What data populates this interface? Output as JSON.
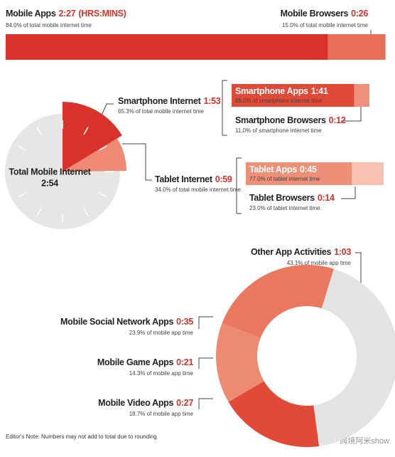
{
  "chart_data": [
    {
      "type": "stacked-bar",
      "unit": "(HRS:MINS)",
      "series": [
        {
          "name": "Mobile Apps",
          "time": "2:27",
          "color": "#d9322b",
          "values": [
            84.0
          ],
          "value_labels": [
            "84.0% of total mobile internet time"
          ]
        },
        {
          "name": "Mobile Browsers",
          "time": "0:26",
          "color": "#ea6f58",
          "values": [
            15.0
          ],
          "value_labels": [
            "15.0% of total mobile internet time"
          ]
        }
      ]
    },
    {
      "type": "clock-pie",
      "center_label": "Total Mobile Internet",
      "center_time": "2:54",
      "series": [
        {
          "name": "Smartphone Internet",
          "time": "1:53",
          "color": "#d9322b",
          "values": [
            65.3
          ],
          "value_labels": [
            "65.3% of total mobile internet time"
          ]
        },
        {
          "name": "Tablet Internet",
          "time": "0:59",
          "color": "#ee8a74",
          "values": [
            34.0
          ],
          "value_labels": [
            "34.0% of total mobile internet time"
          ]
        }
      ]
    },
    {
      "type": "split-bars",
      "bars": [
        {
          "series": [
            {
              "name": "Smartphone Apps",
              "time": "1:41",
              "color": "#e04a36",
              "values": [
                89.0
              ],
              "value_labels": [
                "89.0% of smartphone internet time"
              ]
            },
            {
              "name": "Smartphone Browsers",
              "time": "0:12",
              "color": "#f0907c",
              "values": [
                11.0
              ],
              "value_labels": [
                "11.0% of smartphone internet time"
              ]
            }
          ]
        },
        {
          "series": [
            {
              "name": "Tablet Apps",
              "time": "0:45",
              "color": "#ee8f78",
              "values": [
                77.0
              ],
              "value_labels": [
                "77.0% of tablet internet time"
              ]
            },
            {
              "name": "Tablet Browsers",
              "time": "0:14",
              "color": "#f8c2b2",
              "values": [
                23.0
              ],
              "value_labels": [
                "23.0% of tablet internet time"
              ]
            }
          ]
        }
      ]
    },
    {
      "type": "donut",
      "series": [
        {
          "name": "Other App Activities",
          "time": "1:03",
          "color": "#e3e3e3",
          "values": [
            43.1
          ],
          "value_labels": [
            "43.1% of mobile app time"
          ]
        },
        {
          "name": "Mobile Video Apps",
          "time": "0:27",
          "color": "#e04a36",
          "values": [
            18.7
          ],
          "value_labels": [
            "18.7% of mobile app time"
          ]
        },
        {
          "name": "Mobile Game Apps",
          "time": "0:21",
          "color": "#ec8a72",
          "values": [
            14.3
          ],
          "value_labels": [
            "14.3% of mobile app time"
          ]
        },
        {
          "name": "Mobile Social Network Apps",
          "time": "0:35",
          "color": "#e9785f",
          "values": [
            23.9
          ],
          "value_labels": [
            "23.9% of mobile app time"
          ]
        }
      ]
    }
  ],
  "note": "Editor's Note: Numbers may not add to total due to rounding",
  "watermark": "跨境阿米show"
}
